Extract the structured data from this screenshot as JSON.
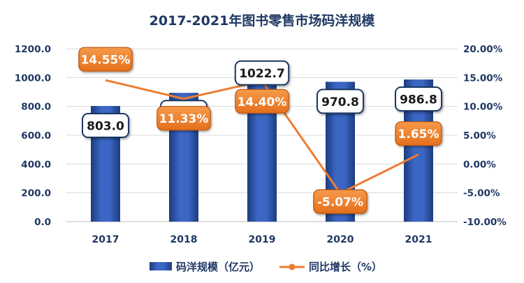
{
  "chart_data": {
    "type": "bar",
    "title": "2017-2021年图书零售市场码洋规模",
    "categories": [
      "2017",
      "2018",
      "2019",
      "2020",
      "2021"
    ],
    "series": [
      {
        "name": "码洋规模（亿元）",
        "type": "bar",
        "axis": "left",
        "values": [
          803.0,
          894.0,
          1022.7,
          970.8,
          986.8
        ],
        "labels": [
          "803.0",
          "894.0",
          "1022.7",
          "970.8",
          "986.8"
        ],
        "color": "#2f56a8"
      },
      {
        "name": "同比增长（%）",
        "type": "line",
        "axis": "right",
        "values": [
          14.55,
          11.33,
          14.4,
          -5.07,
          1.65
        ],
        "labels": [
          "14.55%",
          "11.33%",
          "14.40%",
          "-5.07%",
          "1.65%"
        ],
        "color": "#ed7d31"
      }
    ],
    "y_left": {
      "ylim": [
        0,
        1200
      ],
      "ticks": [
        "0.0",
        "200.0",
        "400.0",
        "600.0",
        "800.0",
        "1000.0",
        "1200.0"
      ]
    },
    "y_right": {
      "ylim": [
        -10,
        20
      ],
      "ticks": [
        "-10.00%",
        "-5.00%",
        "0.00%",
        "5.00%",
        "10.00%",
        "15.00%",
        "20.00%"
      ]
    },
    "grid": true,
    "legend_position": "bottom",
    "colors": {
      "text": "#1f3864",
      "grid": "#d9d9d9",
      "bar": "#2f56a8",
      "line": "#ed7d31",
      "bar_label_border": "#1f3864"
    }
  }
}
